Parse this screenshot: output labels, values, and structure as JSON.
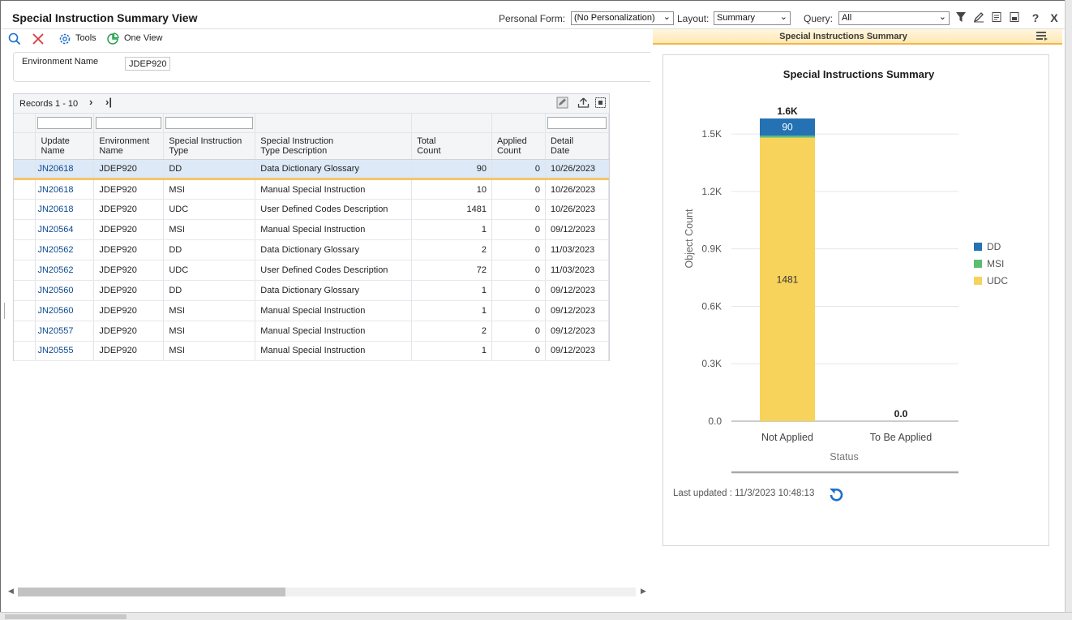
{
  "title_bar": {
    "title": "Special Instruction Summary View",
    "personal_form_label": "Personal Form:",
    "personal_form_value": "(No Personalization)",
    "layout_label": "Layout:",
    "layout_value": "Summary",
    "query_label": "Query:",
    "query_value": "All",
    "icons": [
      "filter-icon",
      "edit-query-icon",
      "notes-icon",
      "export-icon",
      "help-icon",
      "close-icon"
    ],
    "help_glyph": "?",
    "close_glyph": "X"
  },
  "toolbar": {
    "find_icon": "search-icon",
    "close_icon": "close-icon",
    "tools_label": "Tools",
    "one_view_label": "One View"
  },
  "filter_panel": {
    "env_label": "Environment Name",
    "env_value": "JDEP920"
  },
  "grid": {
    "records_label": "Records 1 - 10",
    "columns": [
      {
        "line1": "Update",
        "line2": "Name"
      },
      {
        "line1": "Environment",
        "line2": "Name"
      },
      {
        "line1": "Special Instruction",
        "line2": "Type"
      },
      {
        "line1": "Special Instruction",
        "line2": "Type Description"
      },
      {
        "line1": "Total",
        "line2": "Count"
      },
      {
        "line1": "Applied",
        "line2": "Count"
      },
      {
        "line1": "Detail",
        "line2": "Date"
      }
    ],
    "rows": [
      {
        "c0": "JN20618",
        "c1": "JDEP920",
        "c2": "DD",
        "c3": "Data Dictionary Glossary",
        "c4": "90",
        "c5": "0",
        "c6": "10/26/2023"
      },
      {
        "c0": "JN20618",
        "c1": "JDEP920",
        "c2": "MSI",
        "c3": "Manual Special Instruction",
        "c4": "10",
        "c5": "0",
        "c6": "10/26/2023"
      },
      {
        "c0": "JN20618",
        "c1": "JDEP920",
        "c2": "UDC",
        "c3": "User Defined Codes Description",
        "c4": "1481",
        "c5": "0",
        "c6": "10/26/2023"
      },
      {
        "c0": "JN20564",
        "c1": "JDEP920",
        "c2": "MSI",
        "c3": "Manual Special Instruction",
        "c4": "1",
        "c5": "0",
        "c6": "09/12/2023"
      },
      {
        "c0": "JN20562",
        "c1": "JDEP920",
        "c2": "DD",
        "c3": "Data Dictionary Glossary",
        "c4": "2",
        "c5": "0",
        "c6": "11/03/2023"
      },
      {
        "c0": "JN20562",
        "c1": "JDEP920",
        "c2": "UDC",
        "c3": "User Defined Codes Description",
        "c4": "72",
        "c5": "0",
        "c6": "11/03/2023"
      },
      {
        "c0": "JN20560",
        "c1": "JDEP920",
        "c2": "DD",
        "c3": "Data Dictionary Glossary",
        "c4": "1",
        "c5": "0",
        "c6": "09/12/2023"
      },
      {
        "c0": "JN20560",
        "c1": "JDEP920",
        "c2": "MSI",
        "c3": "Manual Special Instruction",
        "c4": "1",
        "c5": "0",
        "c6": "09/12/2023"
      },
      {
        "c0": "JN20557",
        "c1": "JDEP920",
        "c2": "MSI",
        "c3": "Manual Special Instruction",
        "c4": "2",
        "c5": "0",
        "c6": "09/12/2023"
      },
      {
        "c0": "JN20555",
        "c1": "JDEP920",
        "c2": "MSI",
        "c3": "Manual Special Instruction",
        "c4": "1",
        "c5": "0",
        "c6": "09/12/2023"
      }
    ]
  },
  "panel": {
    "header_title": "Special Instructions Summary",
    "last_updated": "Last updated : 11/3/2023 10:48:13"
  },
  "colors": {
    "DD": "#2472b3",
    "MSI": "#5bbd72",
    "UDC": "#f7d35b",
    "selected_row_accent": "#f5c46b",
    "link": "#0d4a8f"
  },
  "chart_data": {
    "type": "bar",
    "stacked": true,
    "title": "Special Instructions Summary",
    "xlabel": "Status",
    "ylabel": "Object Count",
    "categories": [
      "Not Applied",
      "To Be Applied"
    ],
    "series": [
      {
        "name": "DD",
        "values": [
          90,
          0
        ]
      },
      {
        "name": "MSI",
        "values": [
          10,
          0
        ]
      },
      {
        "name": "UDC",
        "values": [
          1481,
          0
        ]
      }
    ],
    "segment_labels": {
      "DD": [
        "90",
        ""
      ],
      "MSI": [
        "",
        ""
      ],
      "UDC": [
        "1481",
        ""
      ]
    },
    "total_labels": [
      "1.6K",
      "0.0"
    ],
    "yticks": [
      0,
      300,
      600,
      900,
      1200,
      1500
    ],
    "ytick_labels": [
      "0.0",
      "0.3K",
      "0.6K",
      "0.9K",
      "1.2K",
      "1.5K"
    ],
    "ylim": [
      0,
      1581
    ],
    "grid": true,
    "legend_position": "right"
  }
}
